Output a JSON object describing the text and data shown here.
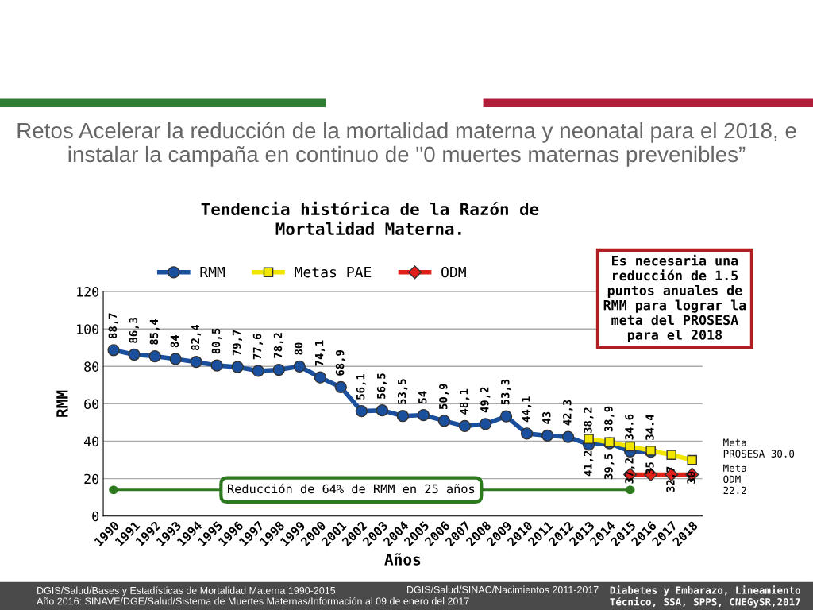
{
  "chart_data": {
    "type": "line",
    "title": "Retos Acelerar la reducción de la mortalidad materna y neonatal para el 2018, e instalar la campaña en continuo de \"0 muertes maternas prevenibles”",
    "subtitle": "Tendencia histórica de la Razón de\nMortalidad Materna.",
    "xlabel": "Años",
    "ylabel": "RMM",
    "categories": [
      "1990",
      "1991",
      "1992",
      "1993",
      "1994",
      "1995",
      "1996",
      "1997",
      "1998",
      "1999",
      "2000",
      "2001",
      "2002",
      "2003",
      "2004",
      "2005",
      "2006",
      "2007",
      "2008",
      "2009",
      "2010",
      "2011",
      "2012",
      "2013",
      "2014",
      "2015",
      "2016",
      "2017",
      "2018"
    ],
    "series": [
      {
        "name": "RMM",
        "color": "#1a4f9e",
        "marker": "circle",
        "values": [
          88.7,
          86.3,
          85.4,
          84,
          82.4,
          80.5,
          79.7,
          77.6,
          78.2,
          80,
          74.1,
          68.9,
          56.1,
          56.5,
          53.5,
          54,
          50.9,
          48.1,
          49.2,
          53.3,
          44.1,
          43,
          42.3,
          38.2,
          38.9,
          34.6,
          34.4,
          null,
          null
        ],
        "value_labels": [
          "88,7",
          "86,3",
          "85,4",
          "84",
          "82,4",
          "80,5",
          "79,7",
          "77,6",
          "78,2",
          "80",
          "74,1",
          "68,9",
          "56,1",
          "56,5",
          "53,5",
          "54",
          "50,9",
          "48,1",
          "49,2",
          "53,3",
          "44,1",
          "43",
          "42,3",
          "38,2",
          "38,9",
          "34.6",
          "34.4",
          null,
          null
        ]
      },
      {
        "name": "Metas PAE",
        "color": "#f2e600",
        "marker": "square",
        "values": [
          null,
          null,
          null,
          null,
          null,
          null,
          null,
          null,
          null,
          null,
          null,
          null,
          null,
          null,
          null,
          null,
          null,
          null,
          null,
          null,
          null,
          null,
          null,
          41.2,
          39.5,
          37.2,
          35,
          32.7,
          30
        ],
        "value_labels": [
          null,
          null,
          null,
          null,
          null,
          null,
          null,
          null,
          null,
          null,
          null,
          null,
          null,
          null,
          null,
          null,
          null,
          null,
          null,
          null,
          null,
          null,
          null,
          "41,2",
          "39,5",
          "37,2",
          "35",
          "32,7",
          "30"
        ]
      },
      {
        "name": "ODM",
        "color": "#e0201b",
        "marker": "diamond",
        "values": [
          null,
          null,
          null,
          null,
          null,
          null,
          null,
          null,
          null,
          null,
          null,
          null,
          null,
          null,
          null,
          null,
          null,
          null,
          null,
          null,
          null,
          null,
          null,
          null,
          null,
          22.2,
          22.2,
          22.2,
          22.2
        ]
      }
    ],
    "ylim": [
      0,
      120
    ],
    "yticks": [
      0,
      20,
      40,
      60,
      80,
      100,
      120
    ],
    "grid": "y",
    "legend": "top",
    "annotations": [
      "Es necesaria una\nreducción de 1.5\npuntos anuales de\nRMM para lograr la\nmeta del PROSESA\npara el 2018",
      "Reducción de 64% de RMM en 25 años",
      {
        "text": "Meta\nPROSESA 30.0",
        "x": "2018",
        "y": 30
      },
      {
        "text": "Meta\nODM\n22.2",
        "x": "2018",
        "y": 22.2
      },
      "DGIS/Salud/Bases y Estadísticas de Mortalidad Materna 1990-2015\nAño 2016: SINAVE/DGE/Salud/Sistema de Muertes Maternas/Información al 09 de enero del 2017",
      "DGIS/Salud/SINAC/Nacimientos 2011-2017",
      "Diabetes y Embarazo, Lineamiento\nTécnico, SSA, SPPS, CNEGySR,2017"
    ]
  }
}
